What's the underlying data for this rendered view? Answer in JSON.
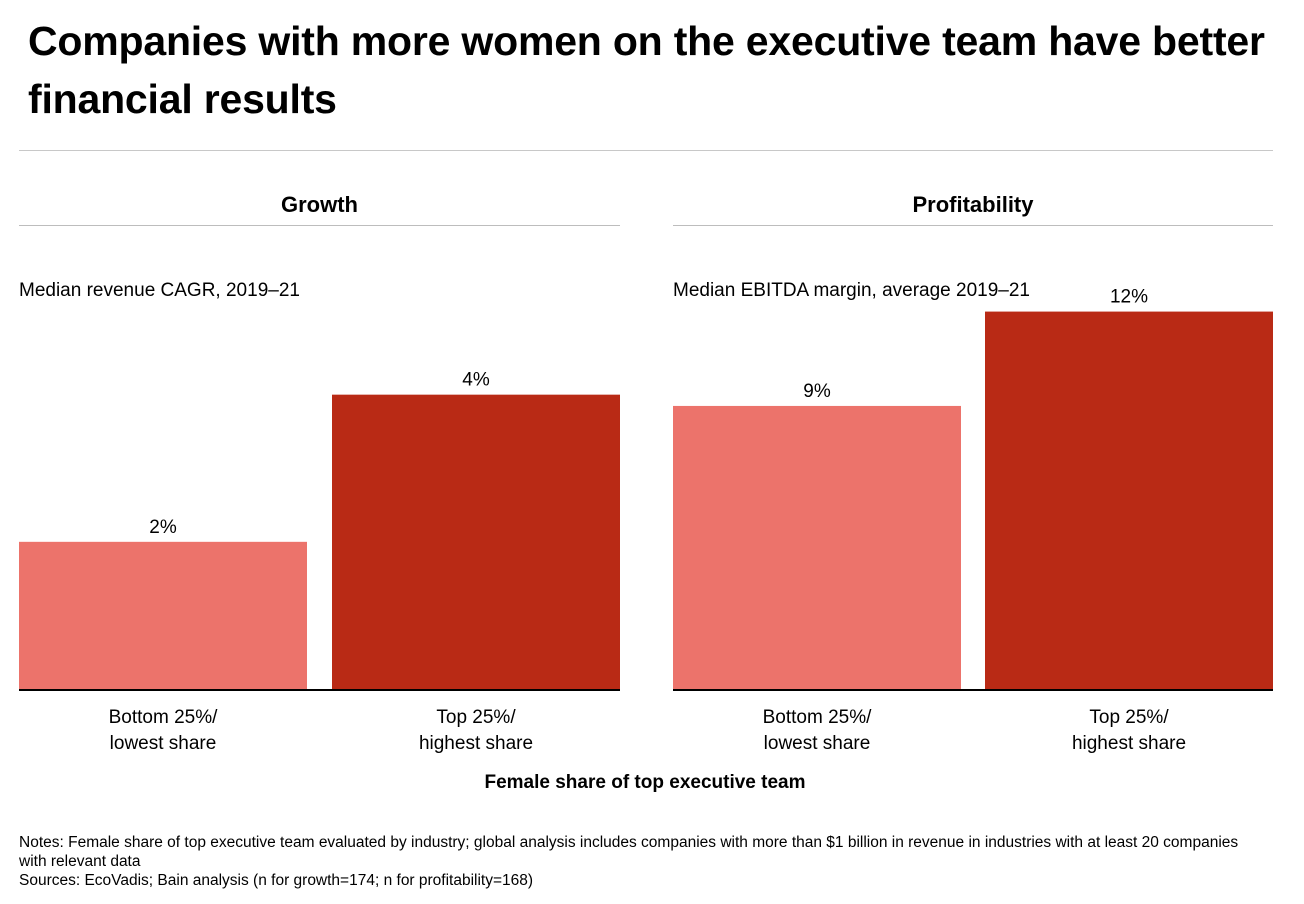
{
  "title": "Companies with more women on the executive team have better financial results",
  "x_axis_label": "Female share of top executive team",
  "notes": "Notes: Female share of top executive team evaluated by industry; global analysis includes companies with more than $1 billion in revenue in industries with at least 20 companies with relevant data",
  "sources": "Sources: EcoVadis; Bain analysis (n for growth=174; n for profitability=168)",
  "colors": {
    "bottom_bar": "#ec736b",
    "top_bar": "#b92a15",
    "axis": "#000000"
  },
  "chart_data": [
    {
      "type": "bar",
      "panel_title": "Growth",
      "ylabel": "Median revenue CAGR, 2019–21",
      "categories": [
        "Bottom 25%/\nlowest share",
        "Top 25%/\nhighest share"
      ],
      "values": [
        2,
        4
      ],
      "data_labels": [
        "2%",
        "4%"
      ],
      "ylim": [
        0,
        5.3
      ],
      "grid": false
    },
    {
      "type": "bar",
      "panel_title": "Profitability",
      "ylabel": "Median EBITDA margin, average 2019–21",
      "categories": [
        "Bottom 25%/\nlowest share",
        "Top 25%/\nhighest share"
      ],
      "values": [
        9,
        12
      ],
      "data_labels": [
        "9%",
        "12%"
      ],
      "ylim": [
        0,
        12.4
      ],
      "grid": false
    }
  ]
}
